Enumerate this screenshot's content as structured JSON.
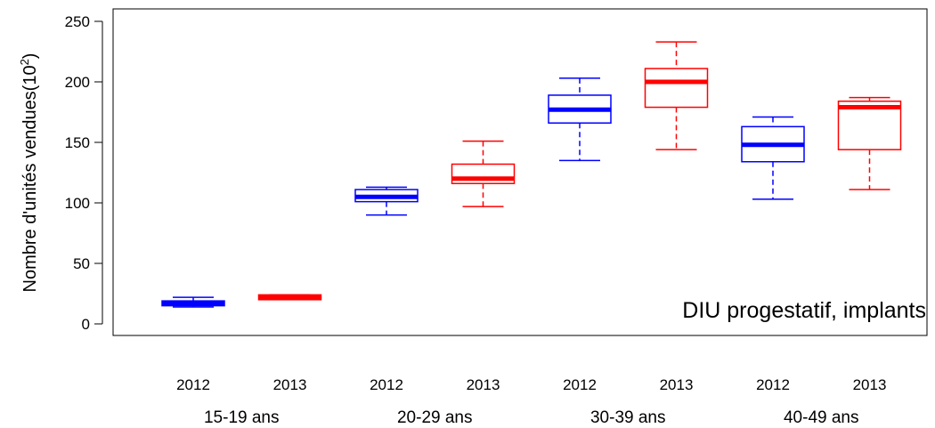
{
  "chart_data": {
    "type": "boxplot",
    "annotation": "DIU progestatif, implants",
    "ylabel": {
      "text": "Nombre d'unités vendues(10",
      "sup": "2",
      "close": ")"
    },
    "ylim": [
      0,
      250
    ],
    "yticks": [
      0,
      50,
      100,
      150,
      200,
      250
    ],
    "groups": [
      "15-19 ans",
      "20-29 ans",
      "30-39 ans",
      "40-49 ans"
    ],
    "years": [
      "2012",
      "2013"
    ],
    "series_colors": {
      "2012": "#0000ff",
      "2013": "#ff0000"
    },
    "boxes": [
      {
        "group": "15-19 ans",
        "year": "2012",
        "min": 14,
        "q1": 15,
        "median": 17,
        "q3": 19,
        "max": 22
      },
      {
        "group": "15-19 ans",
        "year": "2013",
        "min": 20,
        "q1": 20,
        "median": 22,
        "q3": 24,
        "max": 24
      },
      {
        "group": "20-29 ans",
        "year": "2012",
        "min": 90,
        "q1": 101,
        "median": 105,
        "q3": 111,
        "max": 113
      },
      {
        "group": "20-29 ans",
        "year": "2013",
        "min": 97,
        "q1": 116,
        "median": 120,
        "q3": 132,
        "max": 151
      },
      {
        "group": "30-39 ans",
        "year": "2012",
        "min": 135,
        "q1": 166,
        "median": 177,
        "q3": 189,
        "max": 203
      },
      {
        "group": "30-39 ans",
        "year": "2013",
        "min": 144,
        "q1": 179,
        "median": 200,
        "q3": 211,
        "max": 233
      },
      {
        "group": "40-49 ans",
        "year": "2012",
        "min": 103,
        "q1": 134,
        "median": 148,
        "q3": 163,
        "max": 171
      },
      {
        "group": "40-49 ans",
        "year": "2013",
        "min": 111,
        "q1": 144,
        "median": 179,
        "q3": 184,
        "max": 187
      }
    ]
  }
}
